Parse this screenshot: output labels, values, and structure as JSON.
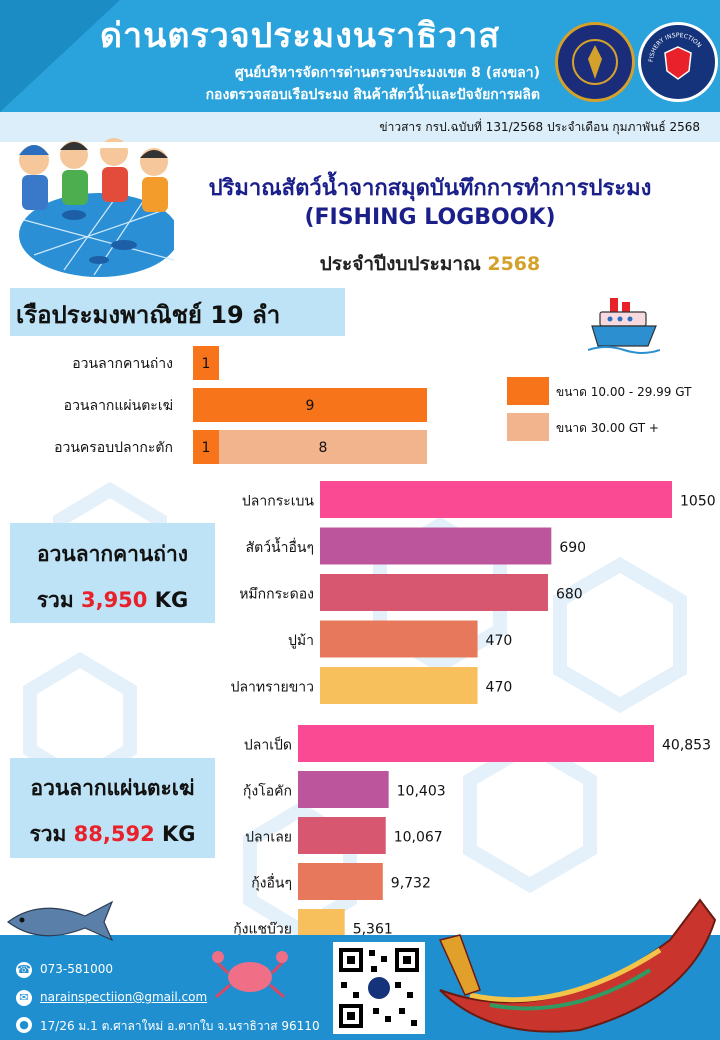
{
  "header": {
    "title": "ด่านตรวจประมงนราธิวาส",
    "sub1": "ศูนย์บริหารจัดการด่านตรวจประมงเขต 8 (สงขลา)",
    "sub2": "กองตรวจสอบเรือประมง สินค้าสัตว์น้ำและปัจจัยการผลิต",
    "logo_right_text": "FISHERY INSPECTION"
  },
  "news": "ข่าวสาร กรป.ฉบับที่ 131/2568 ประจำเดือน กุมภาพันธ์ 2568",
  "title": {
    "line1": "ปริมาณสัตว์น้ำจากสมุดบันทึกการทำการประมง",
    "line2": "(FISHING LOGBOOK)",
    "line3_prefix": "ประจำปีงบประมาณ",
    "year": "2568"
  },
  "fleet": "เรือประมงพาณิชย์ 19 ลำ",
  "chart_data": [
    {
      "type": "bar",
      "orientation": "horizontal",
      "stacked": true,
      "categories": [
        "อวนลากคานถ่าง",
        "อวนลากแผ่นตะเฆ่",
        "อวนครอบปลากะตัก"
      ],
      "series": [
        {
          "name": "ขนาด 10.00 - 29.99 GT",
          "values": [
            1,
            9,
            1
          ],
          "color": "#f7741b"
        },
        {
          "name": "ขนาด 30.00 GT +",
          "values": [
            0,
            0,
            8
          ],
          "color": "#f2b48c"
        }
      ],
      "legend": "right"
    },
    {
      "type": "bar",
      "orientation": "horizontal",
      "group_title": "อวนลากคานถ่าง",
      "total_prefix": "รวม",
      "total": "3,950",
      "total_unit": "KG",
      "categories": [
        "ปลากระเบน",
        "สัตว์น้ำอื่นๆ",
        "หมึกกระดอง",
        "ปูม้า",
        "ปลาทรายขาว"
      ],
      "values": [
        1050,
        690,
        680,
        470,
        470
      ],
      "labels": [
        "1050",
        "690",
        "680",
        "470",
        "470"
      ],
      "colors": [
        "#fa4a93",
        "#bd559d",
        "#d6576f",
        "#e8785b",
        "#f7c05c"
      ]
    },
    {
      "type": "bar",
      "orientation": "horizontal",
      "group_title": "อวนลากแผ่นตะเฆ่",
      "total_prefix": "รวม",
      "total": "88,592",
      "total_unit": "KG",
      "categories": [
        "ปลาเป็ด",
        "กุ้งโอคัก",
        "ปลาเลย",
        "กุ้งอื่นๆ",
        "กุ้งแชบ๊วย"
      ],
      "values": [
        40853,
        10403,
        10067,
        9732,
        5361
      ],
      "labels": [
        "40,853",
        "10,403",
        "10,067",
        "9,732",
        "5,361"
      ],
      "colors": [
        "#fa4a93",
        "#bd559d",
        "#d6576f",
        "#e8785b",
        "#f7c05c"
      ]
    }
  ],
  "footer": {
    "phone": "073-581000",
    "email": "narainspectiion@gmail.com",
    "address": "17/26 ม.1 ต.ศาลาใหม่ อ.ตากใบ จ.นราธิวาส 96110"
  }
}
